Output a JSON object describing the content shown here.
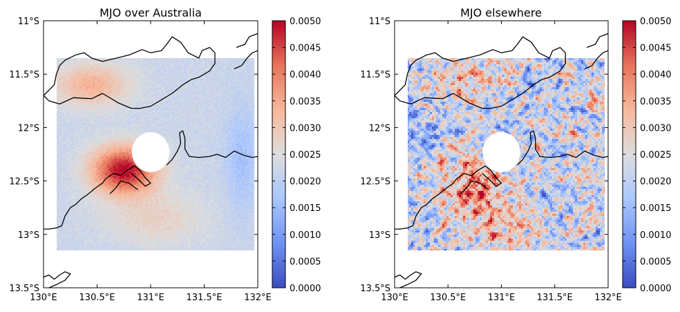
{
  "colors": {
    "cmap": [
      "#3b4cc0",
      "#6f92f3",
      "#aac7fd",
      "#dddddd",
      "#f7b89c",
      "#e7745b",
      "#b40426"
    ],
    "coast": "#000000",
    "missing": "#ffffff"
  },
  "chart_data": [
    {
      "type": "heatmap",
      "title": "MJO over Australia",
      "xlim": [
        130.0,
        132.0
      ],
      "ylim": [
        -13.5,
        -11.0
      ],
      "x_ticks": [
        "130°E",
        "130.5°E",
        "131°E",
        "131.5°E",
        "132°E"
      ],
      "y_ticks": [
        "11°S",
        "11.5°S",
        "12°S",
        "12.5°S",
        "13°S",
        "13.5°S"
      ],
      "data_extent": {
        "lon": [
          130.12,
          131.97
        ],
        "lat": [
          -13.15,
          -11.35
        ]
      },
      "masked_circle": {
        "lon": 131.0,
        "lat": -12.23,
        "radius_deg": 0.22
      },
      "colorbar": {
        "min": 0.0,
        "max": 0.005,
        "ticks": [
          "0.0000",
          "0.0005",
          "0.0010",
          "0.0015",
          "0.0020",
          "0.0025",
          "0.0030",
          "0.0035",
          "0.0040",
          "0.0045",
          "0.0050"
        ]
      },
      "field": {
        "style": "smooth",
        "background": 0.0022,
        "noise": 0.0002,
        "hotspots": [
          {
            "lon": 130.75,
            "lat": -12.4,
            "sx": 0.3,
            "sy": 0.22,
            "amp": 0.0028
          },
          {
            "lon": 130.45,
            "lat": -11.6,
            "sx": 0.35,
            "sy": 0.2,
            "amp": 0.0012
          },
          {
            "lon": 131.05,
            "lat": -12.85,
            "sx": 0.45,
            "sy": 0.25,
            "amp": 0.0006
          },
          {
            "lon": 131.85,
            "lat": -12.3,
            "sx": 0.15,
            "sy": 0.5,
            "amp": -0.0006
          }
        ]
      }
    },
    {
      "type": "heatmap",
      "title": "MJO elsewhere",
      "xlim": [
        130.0,
        132.0
      ],
      "ylim": [
        -13.5,
        -11.0
      ],
      "x_ticks": [
        "130°E",
        "130.5°E",
        "131°E",
        "131.5°E",
        "132°E"
      ],
      "y_ticks": [
        "11°S",
        "11.5°S",
        "12°S",
        "12.5°S",
        "13°S",
        "13.5°S"
      ],
      "data_extent": {
        "lon": [
          130.12,
          131.97
        ],
        "lat": [
          -13.15,
          -11.35
        ]
      },
      "masked_circle": {
        "lon": 131.0,
        "lat": -12.23,
        "radius_deg": 0.22
      },
      "colorbar": {
        "min": 0.0,
        "max": 0.005,
        "ticks": [
          "0.0000",
          "0.0005",
          "0.0010",
          "0.0015",
          "0.0020",
          "0.0025",
          "0.0030",
          "0.0035",
          "0.0040",
          "0.0045",
          "0.0050"
        ]
      },
      "field": {
        "style": "noisy",
        "background": 0.0022,
        "noise": 0.0016,
        "hotspots": [
          {
            "lon": 130.75,
            "lat": -12.55,
            "sx": 0.35,
            "sy": 0.3,
            "amp": 0.0014
          },
          {
            "lon": 130.7,
            "lat": -11.55,
            "sx": 0.3,
            "sy": 0.15,
            "amp": 0.0012
          },
          {
            "lon": 131.1,
            "lat": -12.95,
            "sx": 0.3,
            "sy": 0.2,
            "amp": 0.0008
          },
          {
            "lon": 130.25,
            "lat": -11.9,
            "sx": 0.2,
            "sy": 0.3,
            "amp": -0.0008
          }
        ]
      }
    }
  ],
  "coastlines": [
    [
      [
        130.0,
        -11.7
      ],
      [
        130.05,
        -11.75
      ],
      [
        130.15,
        -11.78
      ],
      [
        130.28,
        -11.72
      ],
      [
        130.45,
        -11.73
      ],
      [
        130.55,
        -11.68
      ],
      [
        130.7,
        -11.77
      ],
      [
        130.82,
        -11.82
      ],
      [
        130.9,
        -11.82
      ],
      [
        131.0,
        -11.8
      ],
      [
        131.1,
        -11.74
      ],
      [
        131.2,
        -11.68
      ],
      [
        131.3,
        -11.6
      ],
      [
        131.38,
        -11.55
      ],
      [
        131.45,
        -11.53
      ],
      [
        131.55,
        -11.47
      ],
      [
        131.6,
        -11.4
      ],
      [
        131.6,
        -11.3
      ],
      [
        131.55,
        -11.25
      ],
      [
        131.48,
        -11.28
      ],
      [
        131.45,
        -11.35
      ],
      [
        131.35,
        -11.3
      ],
      [
        131.28,
        -11.2
      ],
      [
        131.2,
        -11.15
      ],
      [
        131.15,
        -11.22
      ],
      [
        131.1,
        -11.28
      ],
      [
        131.0,
        -11.3
      ],
      [
        130.92,
        -11.27
      ],
      [
        130.8,
        -11.32
      ],
      [
        130.68,
        -11.35
      ],
      [
        130.55,
        -11.38
      ],
      [
        130.45,
        -11.35
      ],
      [
        130.38,
        -11.3
      ],
      [
        130.3,
        -11.32
      ],
      [
        130.2,
        -11.37
      ],
      [
        130.15,
        -11.42
      ],
      [
        130.12,
        -11.5
      ],
      [
        130.1,
        -11.6
      ],
      [
        130.05,
        -11.65
      ],
      [
        130.0,
        -11.7
      ]
    ],
    [
      [
        131.15,
        -12.35
      ],
      [
        131.2,
        -12.3
      ],
      [
        131.25,
        -12.22
      ],
      [
        131.28,
        -12.15
      ],
      [
        131.27,
        -12.05
      ],
      [
        131.3,
        -12.03
      ],
      [
        131.32,
        -12.1
      ],
      [
        131.32,
        -12.2
      ],
      [
        131.36,
        -12.27
      ],
      [
        131.45,
        -12.28
      ],
      [
        131.55,
        -12.27
      ],
      [
        131.62,
        -12.25
      ],
      [
        131.7,
        -12.28
      ],
      [
        131.78,
        -12.22
      ],
      [
        131.87,
        -12.26
      ],
      [
        131.95,
        -12.28
      ],
      [
        132.0,
        -12.27
      ]
    ],
    [
      [
        130.82,
        -12.43
      ],
      [
        130.88,
        -12.48
      ],
      [
        130.95,
        -12.55
      ],
      [
        131.0,
        -12.52
      ],
      [
        130.95,
        -12.47
      ],
      [
        130.9,
        -12.4
      ],
      [
        130.85,
        -12.36
      ],
      [
        130.78,
        -12.4
      ],
      [
        130.72,
        -12.45
      ],
      [
        130.65,
        -12.43
      ],
      [
        130.58,
        -12.48
      ],
      [
        130.55,
        -12.52
      ],
      [
        130.48,
        -12.57
      ],
      [
        130.42,
        -12.62
      ],
      [
        130.35,
        -12.67
      ],
      [
        130.3,
        -12.72
      ],
      [
        130.25,
        -12.75
      ],
      [
        130.2,
        -12.83
      ],
      [
        130.17,
        -12.92
      ],
      [
        130.12,
        -12.94
      ],
      [
        130.05,
        -12.95
      ],
      [
        130.0,
        -12.95
      ]
    ],
    [
      [
        130.62,
        -12.62
      ],
      [
        130.68,
        -12.56
      ],
      [
        130.72,
        -12.5
      ],
      [
        130.8,
        -12.52
      ],
      [
        130.85,
        -12.56
      ],
      [
        130.88,
        -12.58
      ]
    ],
    [
      [
        130.0,
        -13.4
      ],
      [
        130.05,
        -13.38
      ],
      [
        130.1,
        -13.42
      ],
      [
        130.15,
        -13.38
      ],
      [
        130.2,
        -13.35
      ],
      [
        130.25,
        -13.37
      ],
      [
        130.2,
        -13.43
      ],
      [
        130.12,
        -13.47
      ],
      [
        130.05,
        -13.5
      ]
    ],
    [
      [
        131.78,
        -11.45
      ],
      [
        131.85,
        -11.42
      ],
      [
        131.9,
        -11.35
      ],
      [
        131.95,
        -11.3
      ],
      [
        132.0,
        -11.28
      ]
    ],
    [
      [
        131.8,
        -11.25
      ],
      [
        131.88,
        -11.22
      ],
      [
        131.92,
        -11.15
      ],
      [
        132.0,
        -11.12
      ]
    ]
  ]
}
